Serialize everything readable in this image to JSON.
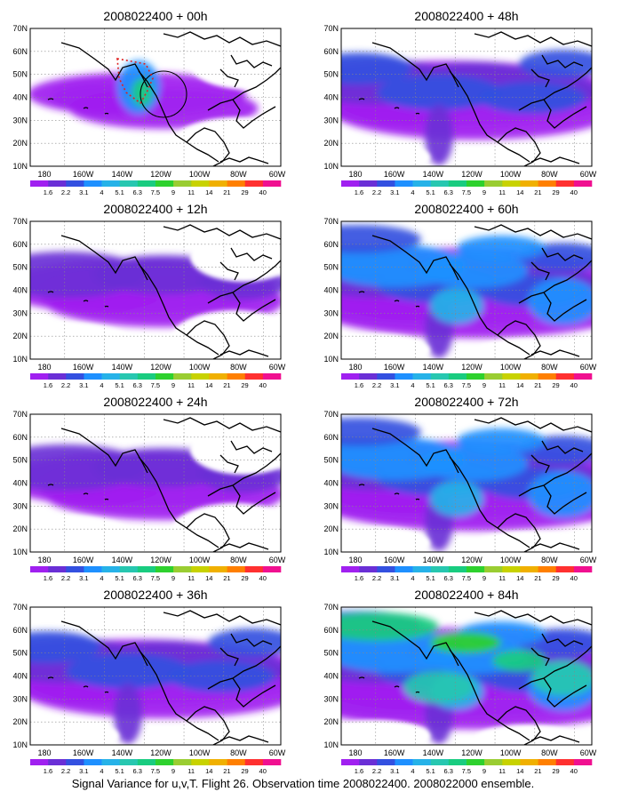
{
  "caption": "Signal Variance for u,v,T. Flight 26. Observation time 2008022400. 2008022000 ensemble.",
  "lat_labels": [
    "70N",
    "60N",
    "50N",
    "40N",
    "30N",
    "20N",
    "10N"
  ],
  "lon_labels": [
    "180",
    "160W",
    "140W",
    "120W",
    "100W",
    "80W",
    "60W"
  ],
  "colorbar": {
    "labels": [
      "1.6",
      "2.2",
      "3.1",
      "4",
      "5.1",
      "6.3",
      "7.5",
      "9",
      "11",
      "14",
      "21",
      "29",
      "40"
    ],
    "colors": [
      "#a020f0",
      "#6a2fd6",
      "#3350e0",
      "#1e90ff",
      "#26b2e8",
      "#27c7b0",
      "#19cc80",
      "#2ed12e",
      "#9acd32",
      "#c8d200",
      "#f0b000",
      "#ff7f00",
      "#ff3030",
      "#f01090"
    ]
  },
  "panels": [
    {
      "title": "2008022400 + 00h",
      "level": 1
    },
    {
      "title": "2008022400 + 48h",
      "level": 3
    },
    {
      "title": "2008022400 + 12h",
      "level": 2
    },
    {
      "title": "2008022400 + 60h",
      "level": 4
    },
    {
      "title": "2008022400 + 24h",
      "level": 2
    },
    {
      "title": "2008022400 + 72h",
      "level": 4
    },
    {
      "title": "2008022400 + 36h",
      "level": 3
    },
    {
      "title": "2008022400 + 84h",
      "level": 5
    }
  ]
}
